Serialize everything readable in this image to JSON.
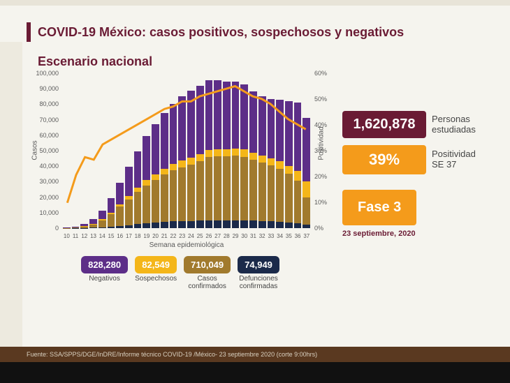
{
  "title": "COVID-19 México: casos positivos, sospechosos y negativos",
  "subtitle": "Escenario nacional",
  "chart": {
    "type": "combo-stacked-bar-line",
    "background_color": "#f5f4ee",
    "y_left": {
      "label": "Casos",
      "min": 0,
      "max": 100000,
      "step": 10000,
      "ticks": [
        "0",
        "10,000",
        "20,000",
        "30,000",
        "40,000",
        "50,000",
        "60,000",
        "70,000",
        "80,000",
        "90,000",
        "100,000"
      ]
    },
    "y_right": {
      "label": "Positividad",
      "min": 0,
      "max": 60,
      "step": 10,
      "ticks": [
        "0%",
        "10%",
        "20%",
        "30%",
        "40%",
        "50%",
        "60%"
      ]
    },
    "x": {
      "label": "Semana epidemiológica",
      "categories": [
        "10",
        "11",
        "12",
        "13",
        "14",
        "15",
        "16",
        "17",
        "18",
        "19",
        "20",
        "21",
        "22",
        "23",
        "24",
        "25",
        "26",
        "27",
        "28",
        "29",
        "30",
        "31",
        "32",
        "33",
        "34",
        "35",
        "36",
        "37"
      ]
    },
    "series": {
      "defunciones": {
        "color": "#1b2a4a",
        "values": [
          10,
          40,
          120,
          300,
          600,
          1000,
          1500,
          2000,
          2700,
          3200,
          3700,
          4100,
          4400,
          4600,
          4800,
          5000,
          5100,
          5100,
          5100,
          5100,
          5000,
          4900,
          4800,
          4500,
          4200,
          3800,
          3300,
          2200
        ]
      },
      "confirmados": {
        "color": "#a17a2d",
        "values": [
          120,
          350,
          900,
          2200,
          4500,
          8200,
          12500,
          17000,
          21000,
          25000,
          28000,
          31000,
          33500,
          35500,
          37000,
          39000,
          41500,
          42000,
          42000,
          42500,
          42000,
          40000,
          38500,
          37000,
          35000,
          32000,
          28000,
          18000
        ]
      },
      "sospechosos": {
        "color": "#f4b619",
        "values": [
          30,
          80,
          180,
          400,
          700,
          1100,
          1700,
          2200,
          2800,
          3300,
          3700,
          4000,
          4200,
          4400,
          4600,
          4700,
          4800,
          4800,
          4900,
          4800,
          4700,
          4600,
          4500,
          4600,
          4700,
          5200,
          6500,
          10500
        ]
      },
      "negativos": {
        "color": "#5d2e88",
        "values": [
          200,
          500,
          1400,
          3000,
          5500,
          9500,
          14000,
          19000,
          24000,
          29000,
          33000,
          36500,
          39500,
          42000,
          44000,
          45000,
          46000,
          45500,
          44500,
          44000,
          43000,
          40500,
          39000,
          39000,
          40500,
          42500,
          45000,
          42000
        ]
      },
      "positividad_line": {
        "color": "#f49b1b",
        "width": 3,
        "values": [
          10,
          21,
          28,
          27,
          33,
          35,
          37,
          39,
          41,
          43,
          45,
          47,
          48,
          50,
          50,
          52,
          53,
          54,
          55,
          56,
          54,
          52,
          51,
          49,
          46,
          43,
          41,
          39
        ]
      }
    }
  },
  "legend": [
    {
      "value": "828,280",
      "label": "Negativos",
      "color": "#5d2e88"
    },
    {
      "value": "82,549",
      "label": "Sospechosos",
      "color": "#f4b619"
    },
    {
      "value": "710,049",
      "label": "Casos\nconfirmados",
      "color": "#a17a2d"
    },
    {
      "value": "74,949",
      "label": "Defunciones\nconfirmadas",
      "color": "#1b2a4a"
    }
  ],
  "stats": {
    "estudiadas": {
      "value": "1,620,878",
      "label": "Personas\nestudiadas",
      "color": "#6a1b34"
    },
    "positividad": {
      "value": "39%",
      "label": "Positividad\nSE 37",
      "color": "#f49b1b"
    },
    "fase": {
      "value": "Fase 3",
      "color": "#f49b1b"
    },
    "date": "23 septiembre, 2020"
  },
  "footer": "Fuente: SSA/SPPS/DGE/InDRE/Informe técnico COVID-19 /México- 23 septiembre 2020 (corte 9:00hrs)"
}
